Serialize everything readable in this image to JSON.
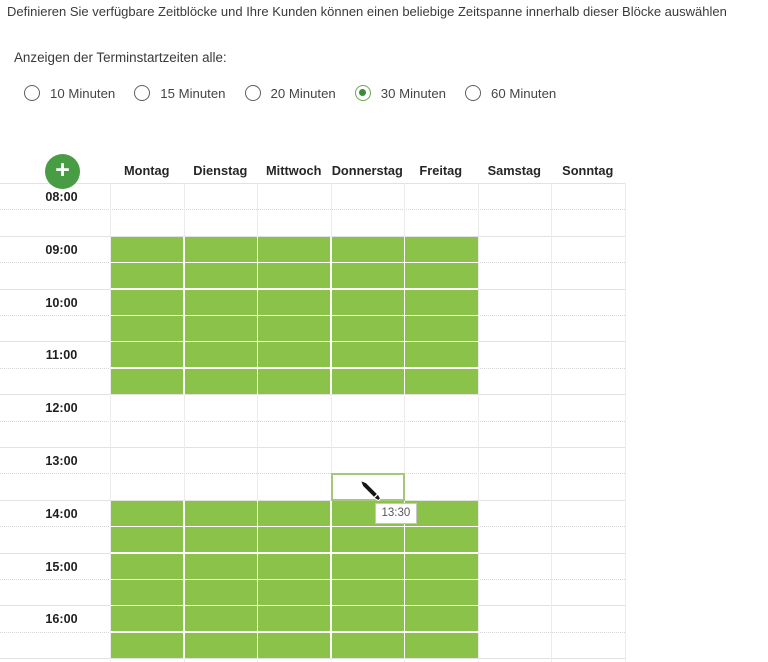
{
  "page": {
    "instruction": "Definieren Sie verfügbare Zeitblöcke und Ihre Kunden können einen beliebige Zeitspanne innerhalb dieser Blöcke auswählen",
    "interval_label": "Anzeigen der Terminstartzeiten alle:"
  },
  "interval_options": [
    {
      "label": "10 Minuten",
      "selected": false
    },
    {
      "label": "15 Minuten",
      "selected": false
    },
    {
      "label": "20 Minuten",
      "selected": false
    },
    {
      "label": "30 Minuten",
      "selected": true
    },
    {
      "label": "60 Minuten",
      "selected": false
    }
  ],
  "calendar": {
    "add_button_glyph": "+",
    "add_button_icon": "plus-icon",
    "days": [
      "Montag",
      "Dienstag",
      "Mittwoch",
      "Donnerstag",
      "Freitag",
      "Samstag",
      "Sonntag"
    ],
    "hour_labels": [
      "08:00",
      "09:00",
      "10:00",
      "11:00",
      "12:00",
      "13:00",
      "14:00",
      "15:00",
      "16:00"
    ],
    "slot_interval_minutes": 30,
    "availability_blocks": [
      {
        "day_start": "Montag",
        "day_end": "Freitag",
        "time_start": "09:00",
        "time_end": "12:00"
      },
      {
        "day_start": "Montag",
        "day_end": "Freitag",
        "time_start": "14:00",
        "time_end": "17:00"
      }
    ],
    "hover_slot": {
      "day": "Donnerstag",
      "time": "13:30"
    },
    "tooltip": "13:30",
    "cursor_icon": "pen-cursor-icon"
  },
  "colors": {
    "block_green": "#8bc34a",
    "accent_green": "#479c44",
    "radio_selected_ring": "#67a84e",
    "radio_selected_dot": "#3c8a3c",
    "hover_border_green": "#a4c878",
    "grid_line": "#e2e2e2"
  }
}
